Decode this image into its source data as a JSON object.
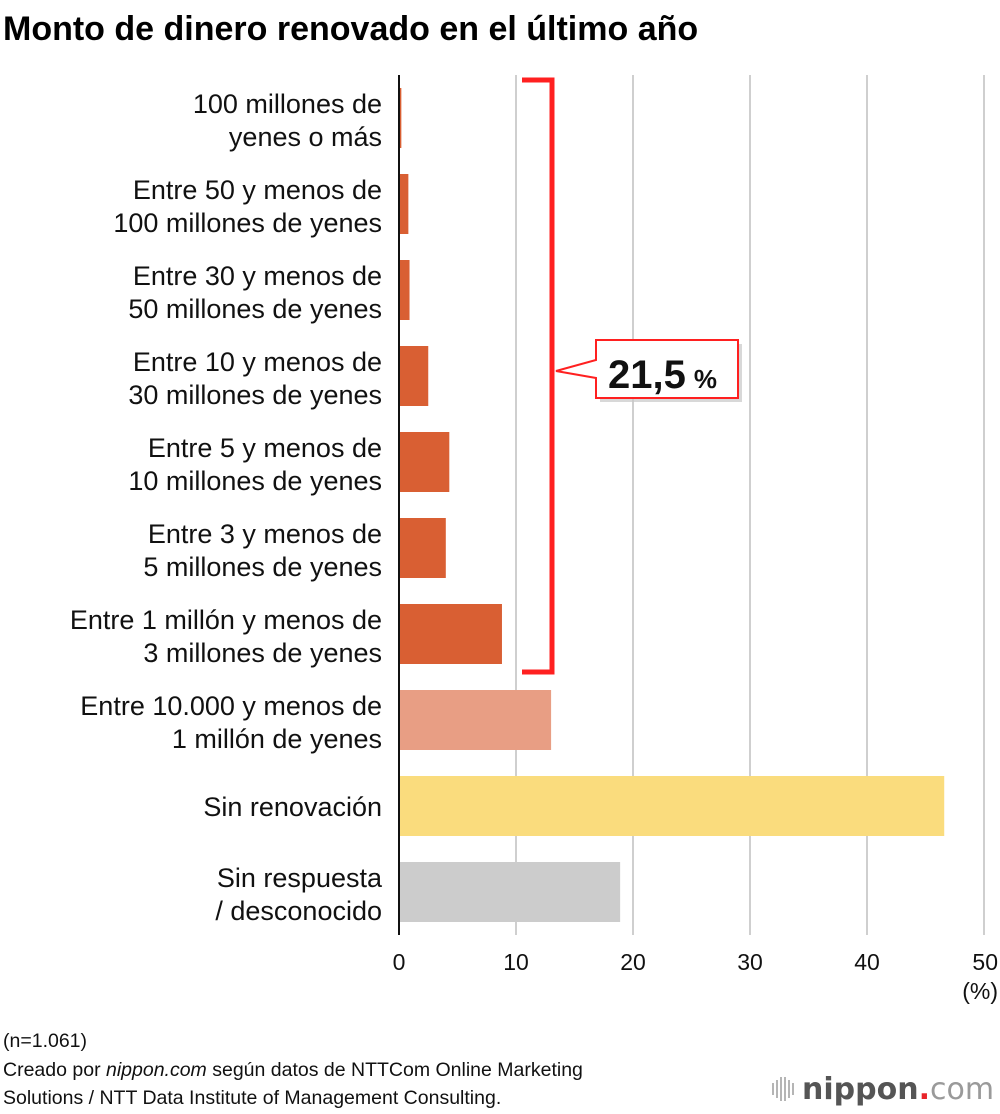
{
  "chart_data": {
    "type": "bar",
    "orientation": "horizontal",
    "title": "Monto de dinero renovado en el último año",
    "categories": [
      [
        "100 millones de",
        "yenes o más"
      ],
      [
        "Entre 50 y menos de",
        "100 millones de yenes"
      ],
      [
        "Entre 30 y menos de",
        "50 millones de yenes"
      ],
      [
        "Entre 10 y menos de",
        "30 millones de yenes"
      ],
      [
        "Entre 5 y menos de",
        "10 millones de yenes"
      ],
      [
        "Entre 3 y menos de",
        "5 millones de yenes"
      ],
      [
        "Entre 1 millón y menos de",
        "3 millones de yenes"
      ],
      [
        "Entre 10.000 y menos de",
        "1 millón de yenes"
      ],
      [
        "Sin renovación"
      ],
      [
        "Sin respuesta",
        "/ desconocido"
      ]
    ],
    "values": [
      0.2,
      0.8,
      0.9,
      2.5,
      4.3,
      4.0,
      8.8,
      13.0,
      46.6,
      18.9
    ],
    "colors": [
      "#d95f33",
      "#d95f33",
      "#d95f33",
      "#d95f33",
      "#d95f33",
      "#d95f33",
      "#d95f33",
      "#e89e84",
      "#fadc7d",
      "#cccccc"
    ],
    "xlim": [
      0,
      50
    ],
    "xticks": [
      "0",
      "10",
      "20",
      "30",
      "40",
      "50"
    ],
    "xtick_values": [
      0,
      10,
      20,
      30,
      40,
      50
    ],
    "xunit": "(%)",
    "grid": true,
    "bracket": {
      "from_category": 0,
      "to_category": 6,
      "value": "21,5",
      "unit": "%",
      "color": "#ff2020"
    }
  },
  "footer": {
    "sample": "(n=1.061)",
    "source_prefix": "Creado por ",
    "source_site": "nippon.com",
    "source_rest": " según datos de NTTCom Online Marketing",
    "source_line2": "Solutions / NTT Data Institute of Management Consulting."
  },
  "logo": {
    "main": "nippon",
    "dot": ".",
    "suffix": "com",
    "dot_color": "#e8242a"
  }
}
